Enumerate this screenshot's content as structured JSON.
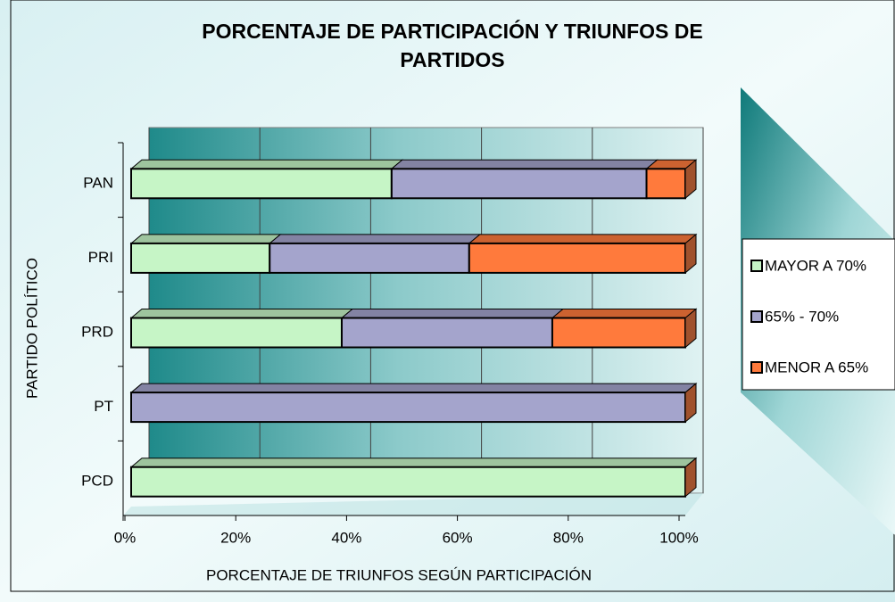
{
  "chart_data": {
    "type": "stacked_barh",
    "title": "PORCENTAJE DE PARTICIPACIÓN Y TRIUNFOS DE PARTIDOS",
    "xlabel": "PORCENTAJE DE TRIUNFOS SEGÚN PARTICIPACIÓN",
    "ylabel": "PARTIDO POLÍTICO",
    "categories": [
      "PAN",
      "PRI",
      "PRD",
      "PT",
      "PCD"
    ],
    "series": [
      {
        "name": "MAYOR A 70%",
        "color": "#c6f5c6",
        "values": [
          47,
          25,
          38,
          0,
          100
        ]
      },
      {
        "name": "65% - 70%",
        "color": "#a4a4cc",
        "values": [
          46,
          36,
          38,
          100,
          0
        ]
      },
      {
        "name": "MENOR A 65%",
        "color": "#ff7a3c",
        "values": [
          7,
          39,
          24,
          0,
          0
        ]
      }
    ],
    "xlim": [
      0,
      100
    ],
    "xticks": [
      {
        "value": 0,
        "label": "0%"
      },
      {
        "value": 20,
        "label": "20%"
      },
      {
        "value": 40,
        "label": "40%"
      },
      {
        "value": 60,
        "label": "60%"
      },
      {
        "value": 80,
        "label": "80%"
      },
      {
        "value": 100,
        "label": "100%"
      }
    ],
    "grid": true,
    "legend": "right"
  }
}
